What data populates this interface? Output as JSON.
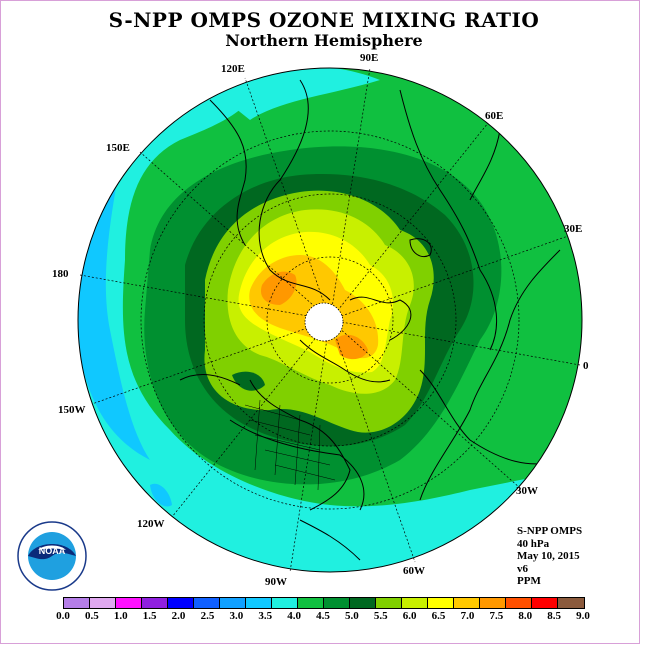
{
  "title": "S-NPP OMPS OZONE MIXING RATIO",
  "subtitle": "Northern Hemisphere",
  "longitude_labels": [
    "90E",
    "60E",
    "30E",
    "0",
    "30W",
    "60W",
    "90W",
    "120W",
    "150W",
    "180",
    "150E",
    "120E"
  ],
  "info": {
    "instrument": "S-NPP OMPS",
    "pressure": "40 hPa",
    "date": "May 10, 2015",
    "version": "v6",
    "units": "PPM"
  },
  "colorbar": {
    "colors": [
      "#b57ee8",
      "#e0a8f0",
      "#ff10ff",
      "#9020e0",
      "#0000ff",
      "#1060ff",
      "#10a0ff",
      "#10c8ff",
      "#20f0e0",
      "#10c040",
      "#009030",
      "#006820",
      "#80d000",
      "#c8f000",
      "#ffff00",
      "#ffc800",
      "#ff9800",
      "#ff5000",
      "#ff0000",
      "#8b5a3c"
    ],
    "ticks": [
      "0.0",
      "0.5",
      "1.0",
      "1.5",
      "2.0",
      "2.5",
      "3.0",
      "3.5",
      "4.0",
      "4.5",
      "5.0",
      "5.5",
      "6.0",
      "6.5",
      "7.0",
      "7.5",
      "8.0",
      "8.5",
      "9.0"
    ]
  },
  "logo": {
    "text": "NOAA"
  }
}
